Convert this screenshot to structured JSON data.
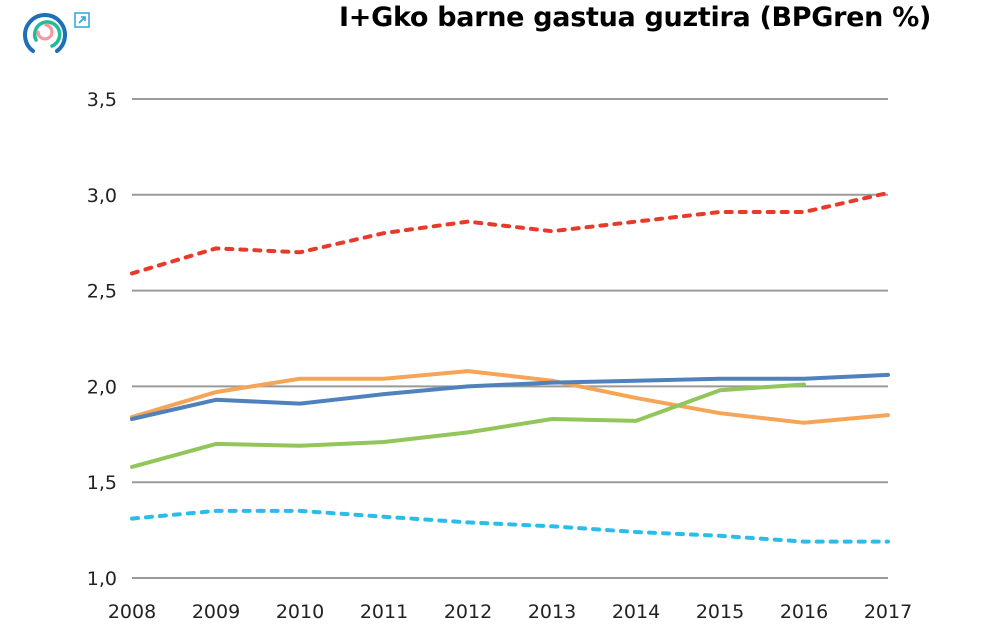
{
  "header": {
    "title": "I+Gko barne gastua guztira (BPGren %)",
    "logo_icon": "concentric-rings-logo-icon",
    "external_link_icon": "external-link-icon"
  },
  "colors": {
    "grid": "#9a9a9a",
    "logo_outer": "#1C6FB8",
    "logo_middle": "#22BC9A",
    "logo_inner": "#F19AA0",
    "link_icon": "#2BA6DE"
  },
  "chart_data": {
    "type": "line",
    "title": "I+Gko barne gastua guztira (BPGren %)",
    "xlabel": "",
    "ylabel": "",
    "categories": [
      "2008",
      "2009",
      "2010",
      "2011",
      "2012",
      "2013",
      "2014",
      "2015",
      "2016",
      "2017"
    ],
    "yticks": [
      "1,0",
      "1,5",
      "2,0",
      "2,5",
      "3,0",
      "3,5"
    ],
    "ylim": [
      1.0,
      3.5
    ],
    "grid": true,
    "legend": "none",
    "series": [
      {
        "name": "Series 1 (red dashed)",
        "color": "#E8392B",
        "dashed": true,
        "values": [
          2.59,
          2.72,
          2.7,
          2.8,
          2.86,
          2.81,
          2.86,
          2.91,
          2.91,
          3.01
        ]
      },
      {
        "name": "Series 2 (orange)",
        "color": "#F6A455",
        "dashed": false,
        "values": [
          1.84,
          1.97,
          2.04,
          2.04,
          2.08,
          2.03,
          1.94,
          1.86,
          1.81,
          1.85
        ]
      },
      {
        "name": "Series 3 (blue)",
        "color": "#4F81BD",
        "dashed": false,
        "values": [
          1.83,
          1.93,
          1.91,
          1.96,
          2.0,
          2.02,
          2.03,
          2.04,
          2.04,
          2.06
        ]
      },
      {
        "name": "Series 4 (green)",
        "color": "#92C55A",
        "dashed": false,
        "values": [
          1.58,
          1.7,
          1.69,
          1.71,
          1.76,
          1.83,
          1.82,
          1.98,
          2.01,
          null
        ]
      },
      {
        "name": "Series 5 (cyan dashed)",
        "color": "#2BBDEA",
        "dashed": true,
        "values": [
          1.31,
          1.35,
          1.35,
          1.32,
          1.29,
          1.27,
          1.24,
          1.22,
          1.19,
          1.19
        ]
      }
    ]
  }
}
